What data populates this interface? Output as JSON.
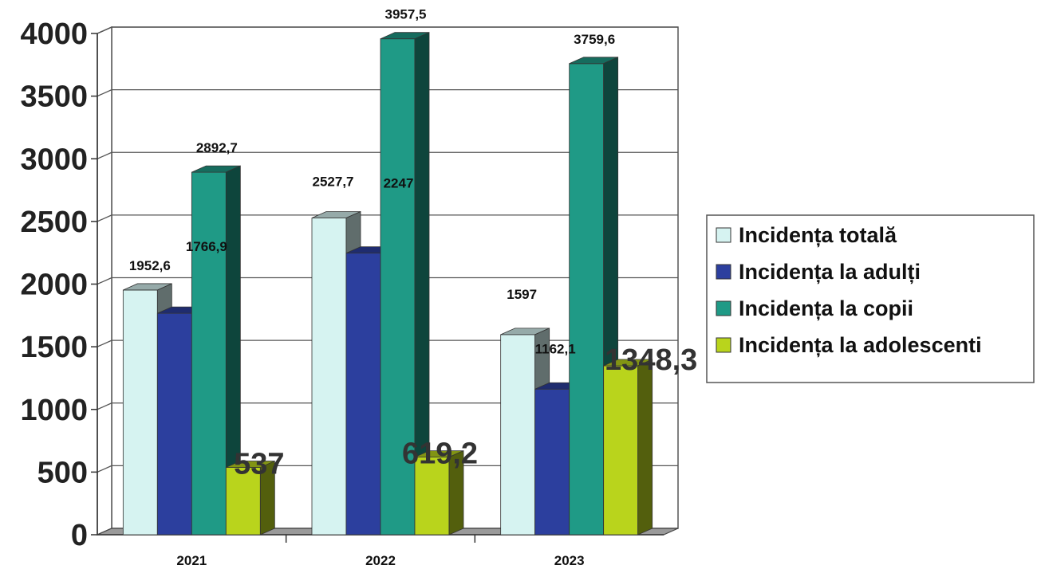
{
  "chart_data": {
    "type": "bar",
    "categories": [
      "2021",
      "2022",
      "2023"
    ],
    "series": [
      {
        "name": "Incidența totală",
        "values": [
          1952.6,
          2527.7,
          1597
        ],
        "labels": [
          "1952,6",
          "2527,7",
          "1597"
        ],
        "color": "#d6f3f1"
      },
      {
        "name": "Incidența la  adulți",
        "values": [
          1766.9,
          2247,
          1162.1
        ],
        "labels": [
          "1766,9",
          "2247",
          "1162,1"
        ],
        "color": "#2c3f9e"
      },
      {
        "name": "Incidența la copii",
        "values": [
          2892.7,
          3957.5,
          3759.6
        ],
        "labels": [
          "2892,7",
          "3957,5",
          "3759,6"
        ],
        "color": "#1f9a86"
      },
      {
        "name": "Incidența la adolescenti",
        "values": [
          537,
          619.2,
          1348.3
        ],
        "labels": [
          "537",
          "619,2",
          "1348,3"
        ],
        "color": "#b9d41c"
      }
    ],
    "ylim": [
      0,
      4000
    ],
    "yticks": [
      0,
      500,
      1000,
      1500,
      2000,
      2500,
      3000,
      3500,
      4000
    ],
    "grid": true,
    "legend": "right",
    "style": "3d-bar"
  }
}
